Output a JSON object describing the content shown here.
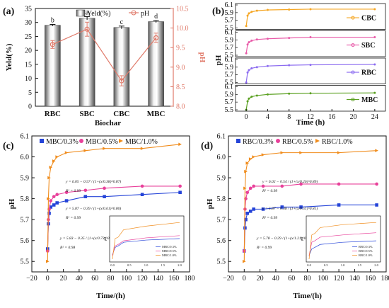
{
  "colors": {
    "bar_light": "#f1f1f1",
    "bar_dark": "#555555",
    "ph_line": "#e07a6a",
    "cbc": "#f5a623",
    "sbc": "#e85aa8",
    "rbc": "#8c6cf0",
    "mbc": "#5aa020",
    "conc_03": "#2544d8",
    "conc_05": "#e8409a",
    "conc_10": "#f08c1c"
  },
  "chart_data": [
    {
      "panel": "(a)",
      "type": "bar",
      "categories": [
        "RBC",
        "SBC",
        "CBC",
        "MBC"
      ],
      "xlabel": "Biochar",
      "ylabel": "Yeld(%)",
      "y2label": "pH",
      "ylim": [
        0,
        35
      ],
      "yticks": [
        "0",
        "5",
        "10",
        "15",
        "20",
        "25",
        "30",
        "35"
      ],
      "y2lim": [
        8.0,
        10.5
      ],
      "y2ticks": [
        "8.0",
        "8.5",
        "9.0",
        "9.5",
        "10.0",
        "10.5"
      ],
      "legend": [
        "Yeld(%)",
        "pH"
      ],
      "series": [
        {
          "name": "Yeld(%)",
          "values": [
            29.0,
            31.5,
            28.2,
            30.3
          ],
          "errors": [
            0.3,
            0.6,
            0.5,
            0.4
          ],
          "letters": [
            "b",
            "a",
            "c",
            "d"
          ]
        },
        {
          "name": "pH",
          "values": [
            9.58,
            9.97,
            8.65,
            9.75
          ],
          "errors": [
            0.1,
            0.18,
            0.13,
            0.12
          ]
        }
      ]
    },
    {
      "panel": "(b)",
      "type": "line",
      "xlabel": "Time (h)",
      "ylabel": "pH",
      "xlim": [
        -2,
        26
      ],
      "xticks": [
        "0",
        "4",
        "8",
        "12",
        "16",
        "20",
        "24"
      ],
      "ylim": [
        5.5,
        6.1
      ],
      "yticks": [
        "5.5",
        "5.7",
        "5.9",
        "6.1"
      ],
      "series": [
        {
          "name": "CBC",
          "x": [
            0,
            0.25,
            0.5,
            1,
            2,
            4,
            8,
            12,
            24
          ],
          "y": [
            5.55,
            5.82,
            5.88,
            5.92,
            5.95,
            5.97,
            5.98,
            5.99,
            5.99
          ]
        },
        {
          "name": "SBC",
          "x": [
            0,
            0.25,
            0.5,
            1,
            2,
            4,
            8,
            12,
            24
          ],
          "y": [
            5.55,
            5.78,
            5.84,
            5.88,
            5.91,
            5.93,
            5.95,
            5.97,
            5.97
          ]
        },
        {
          "name": "RBC",
          "x": [
            0,
            0.25,
            0.5,
            1,
            2,
            4,
            8,
            12,
            24
          ],
          "y": [
            5.5,
            5.76,
            5.82,
            5.87,
            5.9,
            5.93,
            5.95,
            5.96,
            5.97
          ]
        },
        {
          "name": "MBC",
          "x": [
            0,
            0.25,
            0.5,
            1,
            2,
            4,
            8,
            12,
            24
          ],
          "y": [
            5.5,
            5.72,
            5.79,
            5.84,
            5.87,
            5.9,
            5.92,
            5.93,
            5.94
          ]
        }
      ]
    },
    {
      "panel": "(c)",
      "type": "line",
      "xlabel": "Time/(h)",
      "ylabel": "pH",
      "xlim": [
        -20,
        180
      ],
      "xticks": [
        "−20",
        "0",
        "20",
        "40",
        "60",
        "80",
        "100",
        "120",
        "140",
        "160",
        "180"
      ],
      "ylim": [
        5.45,
        6.1
      ],
      "yticks": [
        "5.5",
        "5.6",
        "5.7",
        "5.8",
        "5.9",
        "6.0",
        "6.1"
      ],
      "series": [
        {
          "name": "MBC/0.3%",
          "x": [
            0,
            1,
            2,
            4,
            8,
            12,
            24,
            48,
            72,
            120,
            168
          ],
          "y": [
            5.56,
            5.68,
            5.73,
            5.76,
            5.77,
            5.78,
            5.79,
            5.81,
            5.81,
            5.82,
            5.83
          ]
        },
        {
          "name": "MBC/0.5%",
          "x": [
            0,
            1,
            2,
            4,
            8,
            12,
            24,
            48,
            72,
            120,
            168
          ],
          "y": [
            5.55,
            5.7,
            5.75,
            5.79,
            5.81,
            5.82,
            5.83,
            5.84,
            5.85,
            5.86,
            5.86
          ]
        },
        {
          "name": "MBC/1.0%",
          "x": [
            0,
            1,
            2,
            4,
            8,
            12,
            24,
            48,
            72,
            120,
            168
          ],
          "y": [
            5.5,
            5.8,
            5.9,
            5.95,
            5.98,
            6.0,
            6.02,
            6.03,
            6.04,
            6.04,
            6.06
          ]
        }
      ],
      "equations": [
        {
          "text": "y = 6.05 − 0.57 / (1+(x/0.38)^0.87)",
          "r2": "R² = 0.99"
        },
        {
          "text": "y = 5.87 − 0.39 / (1+(x/0.61)^0.80)",
          "r2": "R² = 0.99"
        },
        {
          "text": "y = 5.83 − 0.35 / (1+(x/0.73)^0.84)",
          "r2": "R² = 0.98"
        }
      ],
      "inset": {
        "xticks": [
          "0.0",
          "0.5",
          "1.0",
          "1.5",
          "2.0"
        ],
        "ylabel": "pH",
        "legend": [
          "MBC/0.3%",
          "MBC/0.5%",
          "MBC/1.0%"
        ]
      }
    },
    {
      "panel": "(d)",
      "type": "line",
      "xlabel": "Time/(h)",
      "ylabel": "pH",
      "xlim": [
        -20,
        180
      ],
      "xticks": [
        "−20",
        "0",
        "20",
        "40",
        "60",
        "80",
        "100",
        "120",
        "140",
        "160",
        "180"
      ],
      "ylim": [
        5.45,
        6.1
      ],
      "yticks": [
        "5.5",
        "5.6",
        "5.7",
        "5.8",
        "5.9",
        "6.0",
        "6.1"
      ],
      "series": [
        {
          "name": "RBC/0.3%",
          "x": [
            0,
            1,
            2,
            4,
            8,
            12,
            24,
            48,
            72,
            120,
            168
          ],
          "y": [
            5.55,
            5.66,
            5.7,
            5.73,
            5.74,
            5.75,
            5.75,
            5.76,
            5.76,
            5.77,
            5.77
          ]
        },
        {
          "name": "RBC/0.5%",
          "x": [
            0,
            1,
            2,
            4,
            8,
            12,
            24,
            48,
            72,
            120,
            168
          ],
          "y": [
            5.55,
            5.75,
            5.8,
            5.83,
            5.85,
            5.86,
            5.86,
            5.86,
            5.87,
            5.87,
            5.87
          ]
        },
        {
          "name": "RBC/1.0%",
          "x": [
            0,
            1,
            2,
            4,
            8,
            12,
            24,
            48,
            72,
            120,
            168
          ],
          "y": [
            5.5,
            5.85,
            5.93,
            5.97,
            5.99,
            6.0,
            6.01,
            6.02,
            6.02,
            6.02,
            6.03
          ]
        }
      ],
      "equations": [
        {
          "text": "y = 6.02 − 0.54 / (1+(x/0.26)^0.89)",
          "r2": "R² = 0.99"
        },
        {
          "text": "y = 5.87 − 0.38 / (1+(x/0.51)^0.81)",
          "r2": "R² = 0.99"
        },
        {
          "text": "y = 5.78 − 0.29 / (1+(x/1.21)^0.66)",
          "r2": "R² = 0.99"
        }
      ],
      "inset": {
        "xticks": [
          "0.0",
          "0.5",
          "1.0",
          "1.5",
          "2.0"
        ],
        "ylabel": "pH",
        "legend": [
          "RBC/0.3%",
          "RBC/0.5%",
          "RBC/1.0%"
        ]
      }
    }
  ]
}
